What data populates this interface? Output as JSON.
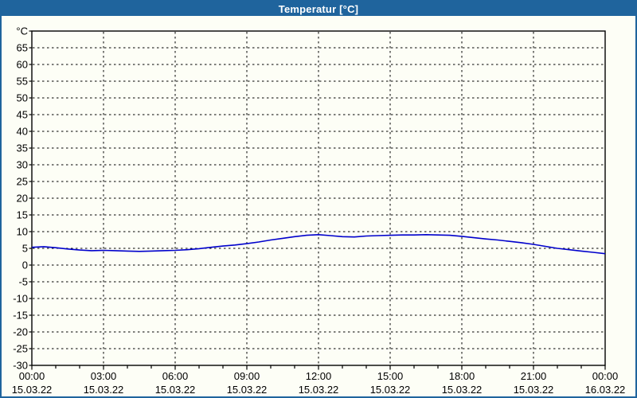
{
  "window": {
    "title": "Temperatur [°C]"
  },
  "chart_data": {
    "type": "line",
    "title": "Temperatur [°C]",
    "legend": "none",
    "grid": true,
    "colors": {
      "titlebar_bg": "#1f649d",
      "titlebar_text": "#ffffff",
      "window_border": "#1f649d",
      "background": "#fdfef6",
      "plot_border": "#000000",
      "gridline": "#000000",
      "series_line": "#0000cc"
    },
    "y_axis": {
      "unit": "°C",
      "min": -30,
      "max": 70,
      "tick_step": 5,
      "tick_labels": [
        "65",
        "60",
        "55",
        "50",
        "45",
        "40",
        "35",
        "30",
        "25",
        "20",
        "15",
        "10",
        "5",
        "0",
        "-5",
        "-10",
        "-15",
        "-20",
        "-25",
        "-30"
      ]
    },
    "x_axis": {
      "span_hours": 24,
      "minor_tick_hours": 1,
      "major_tick_hours": 3,
      "ticks": [
        {
          "hour": 0,
          "time": "00:00",
          "date": "15.03.22"
        },
        {
          "hour": 3,
          "time": "03:00",
          "date": "15.03.22"
        },
        {
          "hour": 6,
          "time": "06:00",
          "date": "15.03.22"
        },
        {
          "hour": 9,
          "time": "09:00",
          "date": "15.03.22"
        },
        {
          "hour": 12,
          "time": "12:00",
          "date": "15.03.22"
        },
        {
          "hour": 15,
          "time": "15:00",
          "date": "15.03.22"
        },
        {
          "hour": 18,
          "time": "18:00",
          "date": "15.03.22"
        },
        {
          "hour": 21,
          "time": "21:00",
          "date": "15.03.22"
        },
        {
          "hour": 24,
          "time": "00:00",
          "date": "16.03.22"
        }
      ]
    },
    "series": [
      {
        "name": "Temperatur",
        "color": "#0000cc",
        "points_hour_degC": [
          [
            0,
            5.3
          ],
          [
            0.5,
            5.5
          ],
          [
            1,
            5.2
          ],
          [
            1.5,
            4.8
          ],
          [
            2,
            4.5
          ],
          [
            2.5,
            4.3
          ],
          [
            3,
            4.4
          ],
          [
            3.5,
            4.3
          ],
          [
            4,
            4.2
          ],
          [
            4.5,
            4.1
          ],
          [
            5,
            4.2
          ],
          [
            5.5,
            4.3
          ],
          [
            6,
            4.4
          ],
          [
            6.5,
            4.6
          ],
          [
            7,
            4.9
          ],
          [
            7.5,
            5.3
          ],
          [
            8,
            5.7
          ],
          [
            8.5,
            6.0
          ],
          [
            9,
            6.4
          ],
          [
            9.5,
            6.9
          ],
          [
            10,
            7.5
          ],
          [
            10.5,
            8.0
          ],
          [
            11,
            8.5
          ],
          [
            11.5,
            8.9
          ],
          [
            12,
            9.1
          ],
          [
            12.5,
            8.8
          ],
          [
            13,
            8.5
          ],
          [
            13.5,
            8.4
          ],
          [
            14,
            8.7
          ],
          [
            14.5,
            8.8
          ],
          [
            15,
            8.9
          ],
          [
            15.5,
            9.0
          ],
          [
            16,
            9.0
          ],
          [
            16.5,
            9.1
          ],
          [
            17,
            9.0
          ],
          [
            17.5,
            8.9
          ],
          [
            18,
            8.6
          ],
          [
            18.5,
            8.2
          ],
          [
            19,
            7.8
          ],
          [
            19.5,
            7.5
          ],
          [
            20,
            7.1
          ],
          [
            20.5,
            6.7
          ],
          [
            21,
            6.2
          ],
          [
            21.5,
            5.6
          ],
          [
            22,
            5.0
          ],
          [
            22.5,
            4.6
          ],
          [
            23,
            4.2
          ],
          [
            23.5,
            3.8
          ],
          [
            24,
            3.4
          ]
        ]
      }
    ]
  }
}
